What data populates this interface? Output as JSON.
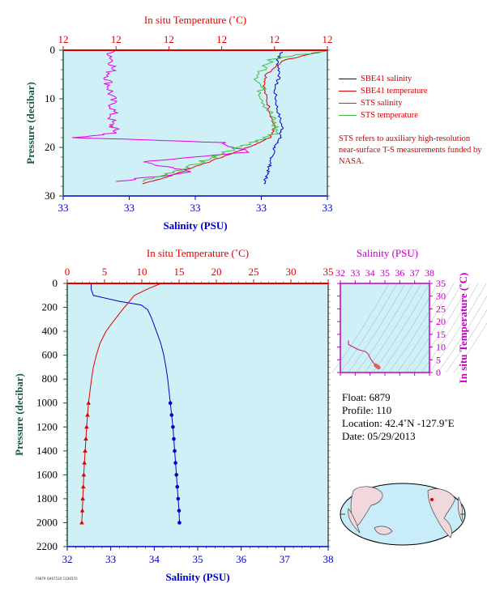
{
  "colors": {
    "plot_bg": "#d0f0f8",
    "salinity": "#0000c8",
    "temperature": "#e00000",
    "sts_salinity": "#e000e0",
    "sts_temperature": "#40c040",
    "axis_pressure": "#185a3a",
    "axis_ts": "#c000c0"
  },
  "top_chart": {
    "title_top": "In situ Temperature (˚C)",
    "xlabel": "Salinity (PSU)",
    "ylabel": "Pressure (decibar)",
    "temp_tick_labels": [
      "12",
      "12",
      "12",
      "12",
      "12",
      "12"
    ],
    "sal_tick_labels": [
      "33",
      "33",
      "33",
      "33",
      "33"
    ],
    "y_tick_labels": [
      "0",
      "10",
      "20",
      "30"
    ]
  },
  "legend": [
    {
      "label": "SBE41 salinity",
      "color": "#0000c8"
    },
    {
      "label": "SBE41 temperature",
      "color": "#e00000"
    },
    {
      "label": "STS salinity",
      "color": "#e000e0"
    },
    {
      "label": "STS temperature",
      "color": "#40c040"
    }
  ],
  "note": "STS refers to auxiliary high-resolution near-surface T-S measurements funded by NASA.",
  "bottom_chart": {
    "title_top": "In situ Temperature (˚C)",
    "xlabel": "Salinity (PSU)",
    "ylabel": "Pressure (decibar)"
  },
  "ts_chart": {
    "title_top": "Salinity (PSU)",
    "ylabel": "In situ Temperature (˚C)"
  },
  "info": {
    "float": "Float:  6879",
    "profile": "Profile:  110",
    "location": "Location:  42.4˚N  -127.9˚E",
    "date": "Date:  05/29/2013"
  },
  "footer_small": "F6879 Q467520 C036570",
  "chart_data": [
    {
      "type": "line",
      "title": "",
      "ylabel": "Pressure (decibar)",
      "xlabel": "Salinity (PSU)",
      "x2label": "In situ Temperature (˚C)",
      "ylim": [
        30,
        0
      ],
      "note": "near-surface detail; tick labels print only rounded values (33 / 12)",
      "series": [
        {
          "name": "SBE41 salinity",
          "axis": "salinity",
          "points": [
            [
              0.83,
              0.3
            ],
            [
              0.81,
              2
            ],
            [
              0.82,
              5
            ],
            [
              0.8,
              8
            ],
            [
              0.81,
              12
            ],
            [
              0.83,
              16
            ],
            [
              0.82,
              18
            ],
            [
              0.8,
              20
            ],
            [
              0.79,
              22
            ],
            [
              0.78,
              24
            ],
            [
              0.77,
              26
            ],
            [
              0.76,
              27.5
            ]
          ]
        },
        {
          "name": "SBE41 temperature",
          "axis": "temperature",
          "points": [
            [
              0.98,
              0.3
            ],
            [
              0.84,
              2
            ],
            [
              0.77,
              5
            ],
            [
              0.76,
              8
            ],
            [
              0.78,
              12
            ],
            [
              0.8,
              16
            ],
            [
              0.78,
              18
            ],
            [
              0.7,
              20
            ],
            [
              0.6,
              22
            ],
            [
              0.5,
              24
            ],
            [
              0.4,
              26
            ],
            [
              0.3,
              27.5
            ]
          ]
        },
        {
          "name": "STS salinity",
          "axis": "salinity",
          "points": [
            [
              0.18,
              0.2
            ],
            [
              0.19,
              3
            ],
            [
              0.17,
              6
            ],
            [
              0.18,
              9
            ],
            [
              0.19,
              12
            ],
            [
              0.18,
              15
            ],
            [
              0.2,
              17
            ],
            [
              0.05,
              18
            ],
            [
              0.6,
              19
            ],
            [
              0.7,
              21
            ],
            [
              0.3,
              23
            ],
            [
              0.5,
              25
            ],
            [
              0.2,
              27
            ]
          ]
        },
        {
          "name": "STS temperature",
          "axis": "temperature",
          "points": [
            [
              0.98,
              0.2
            ],
            [
              0.78,
              2
            ],
            [
              0.74,
              6
            ],
            [
              0.76,
              10
            ],
            [
              0.79,
              14
            ],
            [
              0.81,
              17
            ],
            [
              0.72,
              19
            ],
            [
              0.62,
              21
            ],
            [
              0.52,
              23
            ],
            [
              0.42,
              25
            ],
            [
              0.3,
              27
            ]
          ]
        }
      ]
    },
    {
      "type": "line",
      "title": "",
      "ylabel": "Pressure (decibar)",
      "xlabel": "Salinity (PSU)",
      "x2label": "In situ Temperature (˚C)",
      "xlim": [
        32,
        38
      ],
      "x2lim": [
        0,
        35
      ],
      "ylim": [
        2200,
        0
      ],
      "x_ticks": [
        32,
        33,
        34,
        35,
        36,
        37,
        38
      ],
      "x2_ticks": [
        0,
        5,
        10,
        15,
        20,
        25,
        30,
        35
      ],
      "y_ticks": [
        0,
        200,
        400,
        600,
        800,
        1000,
        1200,
        1400,
        1600,
        1800,
        2000,
        2200
      ],
      "series": [
        {
          "name": "salinity",
          "points": [
            [
              32.55,
              0
            ],
            [
              32.55,
              50
            ],
            [
              32.6,
              100
            ],
            [
              33.2,
              150
            ],
            [
              33.7,
              180
            ],
            [
              33.85,
              220
            ],
            [
              33.95,
              300
            ],
            [
              34.05,
              400
            ],
            [
              34.15,
              500
            ],
            [
              34.22,
              600
            ],
            [
              34.27,
              700
            ],
            [
              34.31,
              800
            ],
            [
              34.34,
              900
            ],
            [
              34.37,
              1000
            ],
            [
              34.4,
              1100
            ],
            [
              34.43,
              1200
            ],
            [
              34.45,
              1300
            ],
            [
              34.47,
              1400
            ],
            [
              34.49,
              1500
            ],
            [
              34.51,
              1600
            ],
            [
              34.53,
              1700
            ],
            [
              34.55,
              1800
            ],
            [
              34.57,
              1900
            ],
            [
              34.58,
              2000
            ]
          ],
          "markers_from": 1000
        },
        {
          "name": "temperature",
          "points": [
            [
              12.6,
              0
            ],
            [
              11.0,
              40
            ],
            [
              9.0,
              100
            ],
            [
              8.2,
              160
            ],
            [
              7.4,
              220
            ],
            [
              6.4,
              300
            ],
            [
              5.2,
              400
            ],
            [
              4.4,
              500
            ],
            [
              3.9,
              600
            ],
            [
              3.5,
              700
            ],
            [
              3.25,
              800
            ],
            [
              3.05,
              900
            ],
            [
              2.85,
              1000
            ],
            [
              2.72,
              1100
            ],
            [
              2.6,
              1200
            ],
            [
              2.5,
              1300
            ],
            [
              2.4,
              1400
            ],
            [
              2.3,
              1500
            ],
            [
              2.22,
              1600
            ],
            [
              2.15,
              1700
            ],
            [
              2.08,
              1800
            ],
            [
              2.02,
              1900
            ],
            [
              1.95,
              2000
            ]
          ],
          "markers_from": 1000
        }
      ]
    },
    {
      "type": "scatter",
      "title": "",
      "xlabel": "Salinity (PSU)",
      "ylabel": "In situ Temperature (˚C)",
      "xlim": [
        32,
        38
      ],
      "ylim": [
        0,
        35
      ],
      "x_ticks": [
        32,
        33,
        34,
        35,
        36,
        37,
        38
      ],
      "y_ticks": [
        0,
        5,
        10,
        15,
        20,
        25,
        30,
        35
      ],
      "points": [
        [
          32.55,
          12.6
        ],
        [
          32.55,
          11.0
        ],
        [
          33.2,
          9.0
        ],
        [
          33.7,
          8.2
        ],
        [
          33.85,
          7.4
        ],
        [
          33.95,
          6.4
        ],
        [
          34.05,
          5.2
        ],
        [
          34.22,
          3.9
        ],
        [
          34.31,
          3.25
        ],
        [
          34.37,
          2.85
        ],
        [
          34.43,
          2.6
        ],
        [
          34.49,
          2.3
        ],
        [
          34.55,
          2.08
        ],
        [
          34.58,
          1.95
        ]
      ]
    }
  ]
}
